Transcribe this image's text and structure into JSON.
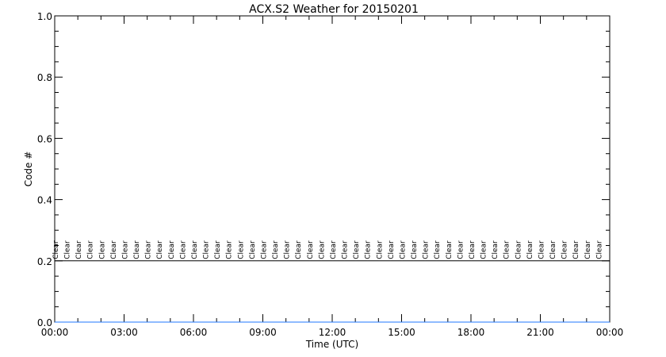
{
  "chart_data": {
    "type": "line",
    "title": "ACX.S2 Weather for 20150201",
    "xlabel": "Time (UTC)",
    "ylabel": "Code #",
    "xlim": [
      0,
      24
    ],
    "ylim": [
      0,
      1
    ],
    "x_ticks": [
      "00:00",
      "03:00",
      "06:00",
      "09:00",
      "12:00",
      "15:00",
      "18:00",
      "21:00",
      "00:00"
    ],
    "y_ticks": [
      "0.0",
      "0.2",
      "0.4",
      "0.6",
      "0.8",
      "1.0"
    ],
    "series": [
      {
        "values_note": "constant",
        "x": [
          0,
          24
        ],
        "y": [
          0.2,
          0.2
        ],
        "color": "#000000"
      },
      {
        "x": [
          0,
          24
        ],
        "y": [
          0,
          0
        ],
        "color": "#1f77ff"
      }
    ],
    "annotation_text": "Clear",
    "annotation_hours": [
      0,
      0.5,
      1,
      1.5,
      2,
      2.5,
      3,
      3.5,
      4,
      4.5,
      5,
      5.5,
      6,
      6.5,
      7,
      7.5,
      8,
      8.5,
      9,
      9.5,
      10,
      10.5,
      11,
      11.5,
      12,
      12.5,
      13,
      13.5,
      14,
      14.5,
      15,
      15.5,
      16,
      16.5,
      17,
      17.5,
      18,
      18.5,
      19,
      19.5,
      20,
      20.5,
      21,
      21.5,
      22,
      22.5,
      23,
      23.5
    ],
    "annotation_y": 0.2,
    "grid": false
  }
}
